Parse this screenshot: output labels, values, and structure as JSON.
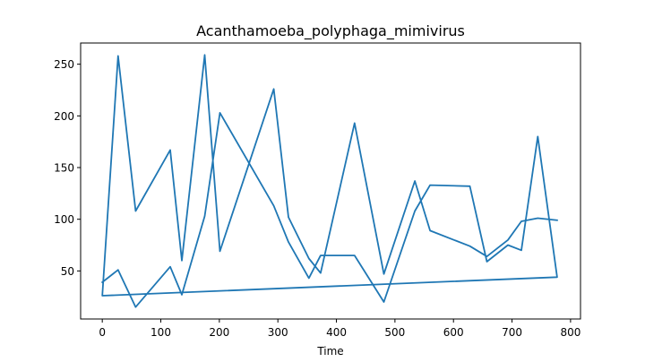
{
  "chart_data": {
    "type": "line",
    "title": "Acanthamoeba_polyphaga_mimivirus",
    "xlabel": "Time",
    "ylabel": "",
    "xlim": [
      -37,
      817
    ],
    "ylim": [
      3.5,
      270.5
    ],
    "x_ticks": [
      0,
      100,
      200,
      300,
      400,
      500,
      600,
      700,
      800
    ],
    "y_ticks": [
      50,
      100,
      150,
      200,
      250
    ],
    "grid": false,
    "series": [
      {
        "color": "#1f77b4",
        "points": [
          [
            0,
            39
          ],
          [
            27,
            51
          ],
          [
            57,
            15
          ],
          [
            116,
            54
          ],
          [
            136,
            27
          ],
          [
            175,
            103
          ],
          [
            201,
            203
          ],
          [
            293,
            113
          ],
          [
            318,
            78
          ],
          [
            353,
            43
          ],
          [
            373,
            65
          ],
          [
            431,
            65
          ],
          [
            481,
            20
          ],
          [
            534,
            108
          ],
          [
            560,
            133
          ],
          [
            628,
            132
          ],
          [
            657,
            59
          ],
          [
            693,
            75
          ],
          [
            716,
            70
          ],
          [
            744,
            180
          ],
          [
            777,
            44
          ],
          [
            0,
            26
          ],
          [
            27,
            258
          ],
          [
            57,
            108
          ],
          [
            116,
            167
          ],
          [
            136,
            60
          ],
          [
            175,
            259
          ],
          [
            201,
            69
          ],
          [
            293,
            226
          ],
          [
            318,
            102
          ],
          [
            353,
            62
          ],
          [
            373,
            48
          ],
          [
            431,
            193
          ],
          [
            481,
            47
          ],
          [
            534,
            137
          ],
          [
            560,
            89
          ],
          [
            628,
            74
          ],
          [
            657,
            64
          ],
          [
            693,
            80
          ],
          [
            716,
            98
          ],
          [
            744,
            101
          ],
          [
            777,
            99
          ]
        ]
      }
    ]
  }
}
